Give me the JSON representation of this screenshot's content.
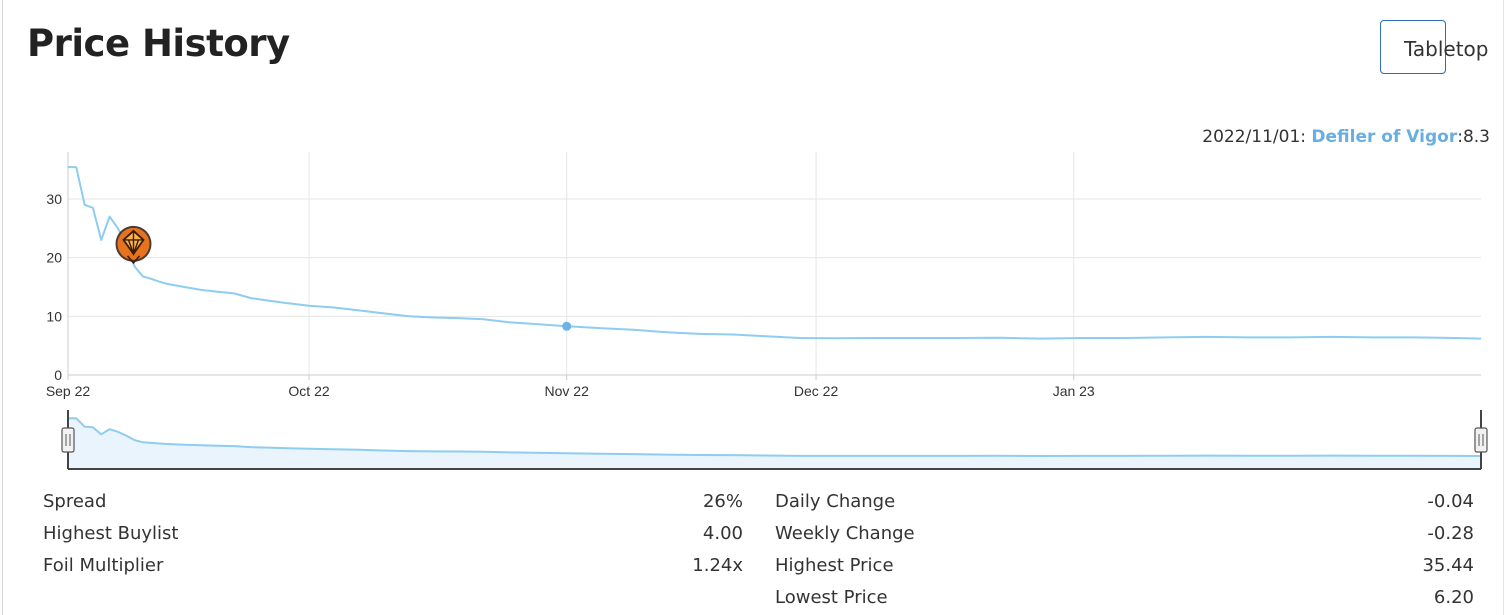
{
  "header": {
    "title": "Price History",
    "format_button_label": "Tabletop"
  },
  "tooltip": {
    "date": "2022/11/01",
    "card_name": "Defiler of Vigor",
    "price": "8.3"
  },
  "colors": {
    "line": "#8ecdf0",
    "grid": "#e6e6e6",
    "marker_orange": "#e8731f",
    "highlight_point": "#6cb2e8",
    "accent_border": "#2f6fb3"
  },
  "chart_data": {
    "type": "line",
    "title": "",
    "xlabel": "",
    "ylabel": "",
    "ylim": [
      0,
      38
    ],
    "y_ticks": [
      "0",
      "10",
      "20",
      "30"
    ],
    "x_ticks": [
      "Sep 22",
      "Oct 22",
      "Nov 22",
      "Dec 22",
      "Jan 23"
    ],
    "x_range": [
      "2022-09-02",
      "2023-02-19"
    ],
    "grid": true,
    "series": [
      {
        "x": [
          "2022-09-02",
          "2022-09-03",
          "2022-09-04",
          "2022-09-05",
          "2022-09-06",
          "2022-09-07",
          "2022-09-08",
          "2022-09-09",
          "2022-09-10",
          "2022-09-11",
          "2022-09-12",
          "2022-09-13",
          "2022-09-14",
          "2022-09-16",
          "2022-09-18",
          "2022-09-20",
          "2022-09-22",
          "2022-09-24",
          "2022-09-26",
          "2022-09-28",
          "2022-10-01",
          "2022-10-04",
          "2022-10-07",
          "2022-10-10",
          "2022-10-13",
          "2022-10-16",
          "2022-10-19",
          "2022-10-22",
          "2022-10-25",
          "2022-10-28",
          "2022-11-01",
          "2022-11-05",
          "2022-11-09",
          "2022-11-13",
          "2022-11-17",
          "2022-11-21",
          "2022-11-25",
          "2022-11-29",
          "2022-12-03",
          "2022-12-08",
          "2022-12-13",
          "2022-12-18",
          "2022-12-23",
          "2022-12-28",
          "2023-01-02",
          "2023-01-07",
          "2023-01-12",
          "2023-01-17",
          "2023-01-22",
          "2023-01-27",
          "2023-02-01",
          "2023-02-06",
          "2023-02-11",
          "2023-02-16",
          "2023-02-19"
        ],
        "y": [
          35.44,
          35.4,
          29.0,
          28.5,
          23.0,
          27.0,
          25.0,
          22.0,
          18.5,
          16.8,
          16.4,
          15.9,
          15.5,
          15.0,
          14.5,
          14.2,
          13.9,
          13.1,
          12.7,
          12.3,
          11.8,
          11.5,
          11.0,
          10.5,
          10.0,
          9.8,
          9.7,
          9.5,
          9.0,
          8.7,
          8.3,
          8.0,
          7.7,
          7.3,
          7.0,
          6.9,
          6.6,
          6.3,
          6.25,
          6.3,
          6.3,
          6.3,
          6.35,
          6.2,
          6.3,
          6.3,
          6.4,
          6.5,
          6.4,
          6.4,
          6.5,
          6.4,
          6.4,
          6.3,
          6.2
        ]
      }
    ],
    "highlight": {
      "x": "2022-11-01",
      "y": 8.3
    }
  },
  "stats": {
    "left": [
      {
        "label": "Spread",
        "value": "26%"
      },
      {
        "label": "Highest Buylist",
        "value": "4.00"
      },
      {
        "label": "Foil Multiplier",
        "value": "1.24x"
      }
    ],
    "right": [
      {
        "label": "Daily Change",
        "value": "-0.04"
      },
      {
        "label": "Weekly Change",
        "value": "-0.28"
      },
      {
        "label": "Highest Price",
        "value": "35.44"
      },
      {
        "label": "Lowest Price",
        "value": "6.20"
      }
    ]
  }
}
